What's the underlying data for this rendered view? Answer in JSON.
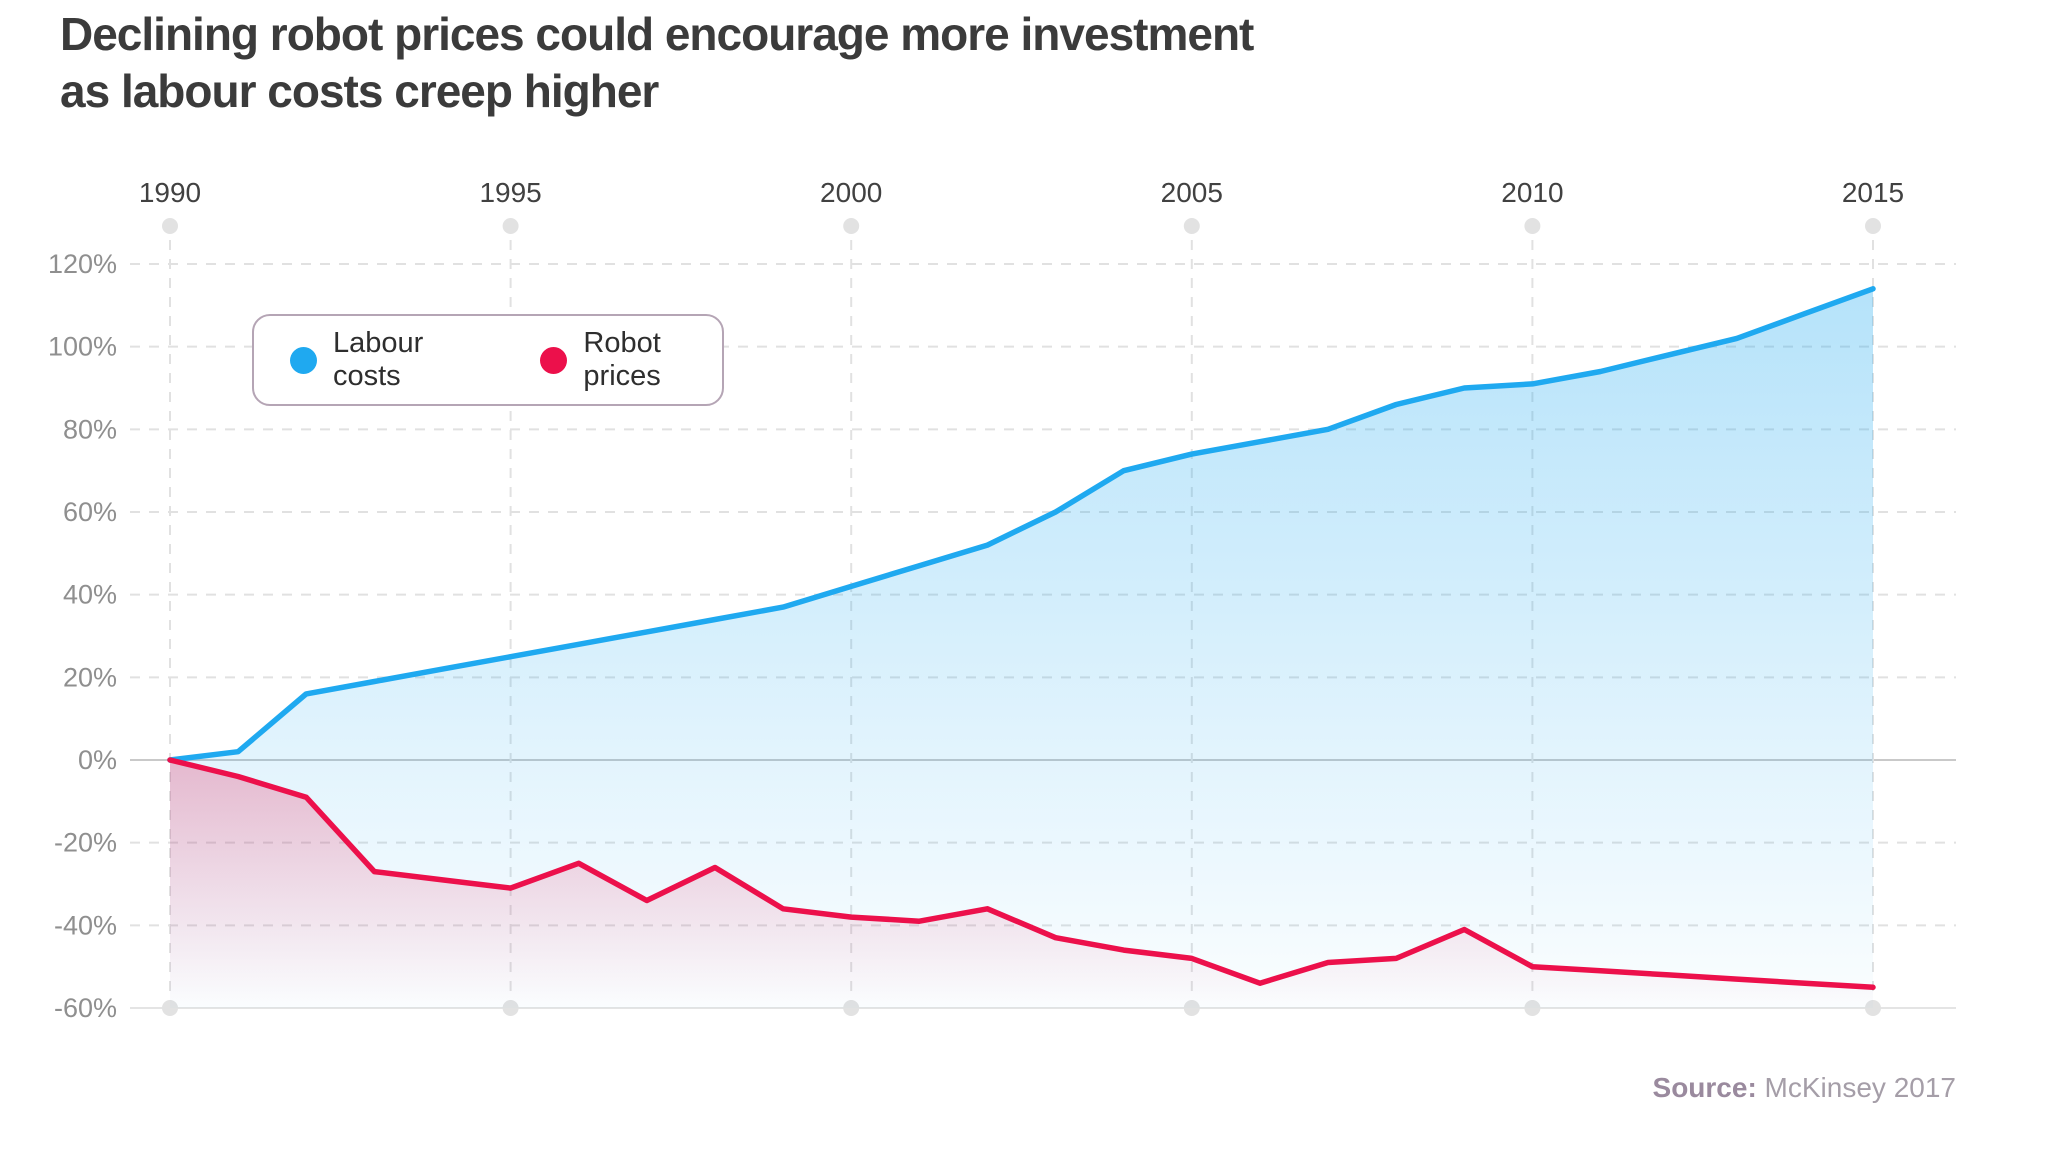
{
  "title": {
    "line1": "Declining robot prices could encourage more investment",
    "line2": "as labour costs creep higher"
  },
  "source": {
    "label": "Source:",
    "text": " McKinsey 2017"
  },
  "colors": {
    "labour_line": "#1fa9f0",
    "robot_line": "#ec104b",
    "grid_dashed": "#e1e1e1",
    "grid_zero": "#c9c9c9",
    "grid_bottom": "#e4e4e4",
    "axis_dot": "#e2e2e2",
    "year_label": "#414141",
    "value_label": "#8f8f8f"
  },
  "chart_data": {
    "type": "area",
    "title": "Declining robot prices could encourage more investment as labour costs creep higher",
    "x": [
      1990,
      1991,
      1992,
      1993,
      1994,
      1995,
      1996,
      1997,
      1998,
      1999,
      2000,
      2001,
      2002,
      2003,
      2004,
      2005,
      2006,
      2007,
      2008,
      2009,
      2010,
      2011,
      2012,
      2013,
      2014,
      2015
    ],
    "series": [
      {
        "name": "Labour costs",
        "color": "#1fa9f0",
        "values": [
          0,
          2,
          16,
          19,
          22,
          25,
          28,
          31,
          34,
          37,
          42,
          47,
          52,
          60,
          70,
          74,
          77,
          80,
          86,
          90,
          91,
          94,
          98,
          102,
          108,
          114
        ]
      },
      {
        "name": "Robot prices",
        "color": "#ec104b",
        "values": [
          0,
          -4,
          -9,
          -27,
          -29,
          -31,
          -25,
          -34,
          -26,
          -36,
          -38,
          -39,
          -36,
          -43,
          -46,
          -48,
          -54,
          -49,
          -48,
          -41,
          -50,
          -51,
          -52,
          -53,
          -54,
          -55
        ]
      }
    ],
    "xlabel": "",
    "ylabel": "",
    "ylim": [
      -60,
      120
    ],
    "y_ticks": [
      120,
      100,
      80,
      60,
      40,
      20,
      0,
      -20,
      -40,
      -60
    ],
    "y_tick_suffix": "%",
    "x_ticks": [
      1990,
      1995,
      2000,
      2005,
      2010,
      2015
    ],
    "grid": "dashed",
    "legend_position": "top-left-inside"
  }
}
